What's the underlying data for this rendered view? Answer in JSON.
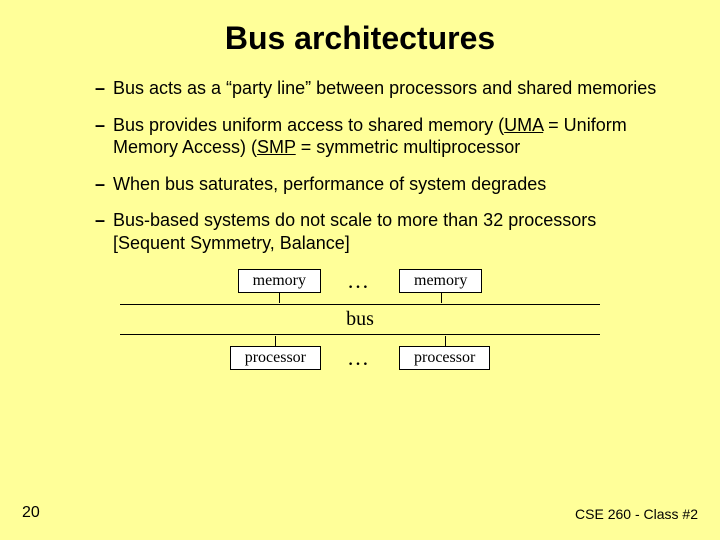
{
  "title": "Bus architectures",
  "bullets": [
    "Bus acts as a “party line” between processors and shared memories",
    "Bus provides uniform access to shared memory (<span class=\"u\">UMA</span> = Uniform Memory Access) (<span class=\"u\">SMP</span> = symmetric multiprocessor",
    "When bus saturates, performance of system degrades",
    "Bus-based systems do not scale to more than 32 processors [Sequent Symmetry, Balance]"
  ],
  "diagram": {
    "memory_label": "memory",
    "processor_label": "processor",
    "bus_label": "bus",
    "dots": "…",
    "box_bg": "#ffffff",
    "box_border": "#000000",
    "box_font": "Times New Roman",
    "box_fontsize": 16,
    "bus_fontsize": 20,
    "line_color": "#000000",
    "line_width": 1
  },
  "footer": {
    "page": "20",
    "course": "CSE 260 - Class #2"
  },
  "colors": {
    "background": "#ffff99",
    "text": "#000000"
  },
  "fonts": {
    "body": "Trebuchet MS",
    "title_size": 32,
    "bullet_size": 18
  }
}
